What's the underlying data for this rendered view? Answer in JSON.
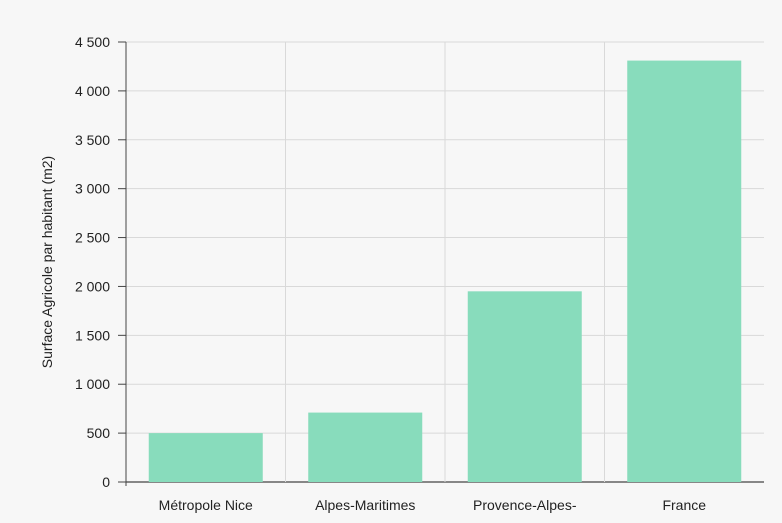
{
  "chart_data": {
    "type": "bar",
    "title": "",
    "xlabel": "",
    "ylabel": "Surface Agricole par habitant (m2)",
    "categories": [
      "Métropole Nice",
      "Alpes-Maritimes",
      "Provence-Alpes-",
      "France"
    ],
    "values": [
      500,
      710,
      1950,
      4310
    ],
    "ylim": [
      0,
      4500
    ],
    "yticks": [
      0,
      500,
      1000,
      1500,
      2000,
      2500,
      3000,
      3500,
      4000,
      4500
    ],
    "ytick_labels": [
      "0",
      "500",
      "1 000",
      "1 500",
      "2 000",
      "2 500",
      "3 000",
      "3 500",
      "4 000",
      "4 500"
    ],
    "grid": true,
    "legend": "none",
    "colors": {
      "bar": "#88dcbc",
      "grid": "#d9d9d9",
      "axis": "#444444",
      "background": "#f7f7f7"
    }
  }
}
